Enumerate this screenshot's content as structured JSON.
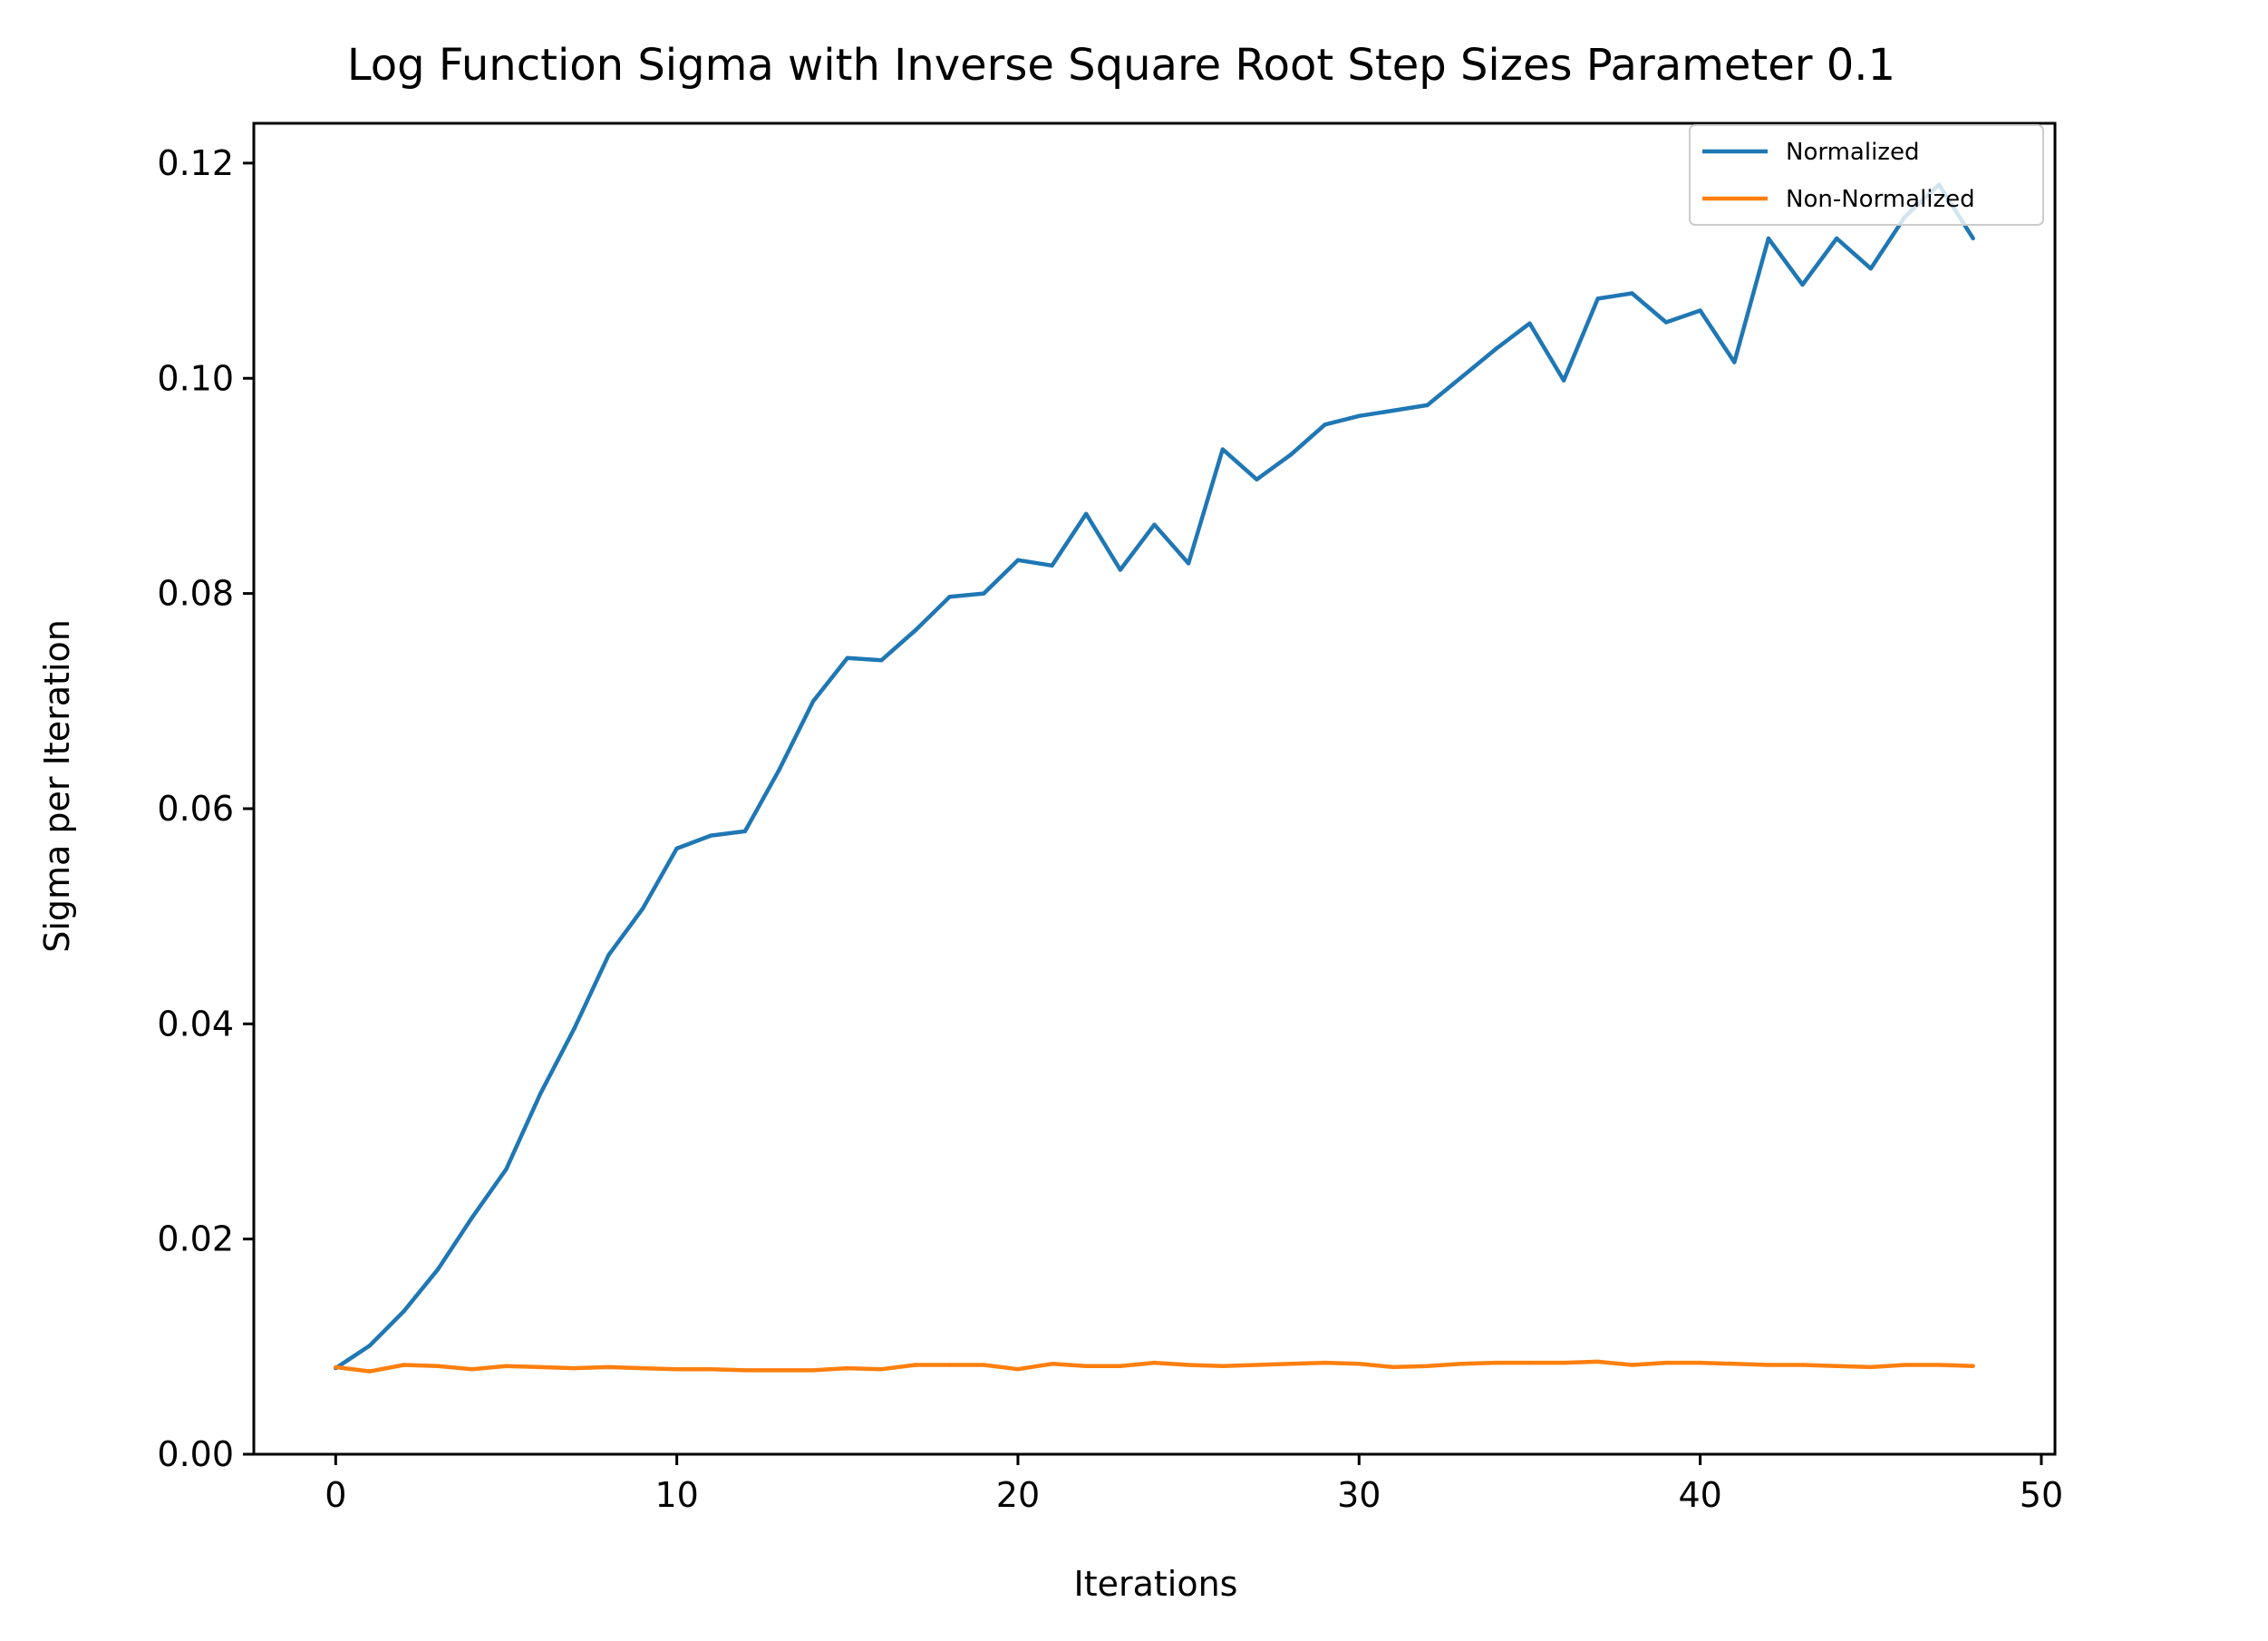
{
  "chart_data": {
    "type": "line",
    "title": "Log Function Sigma with Inverse Square Root Step Sizes Parameter 0.1",
    "xlabel": "Iterations",
    "ylabel": "Sigma per Iteration",
    "xlim": [
      -2.4,
      50.4
    ],
    "ylim": [
      0,
      0.1237
    ],
    "x_ticks": [
      0,
      10,
      20,
      30,
      40,
      50
    ],
    "x_tick_labels": [
      "0",
      "10",
      "20",
      "30",
      "40",
      "50"
    ],
    "y_ticks": [
      0,
      0.02,
      0.04,
      0.06,
      0.08,
      0.1,
      0.12
    ],
    "y_tick_labels": [
      "0.00",
      "0.02",
      "0.04",
      "0.06",
      "0.08",
      "0.10",
      "0.12"
    ],
    "grid": false,
    "legend_position": "top-right",
    "x": [
      0,
      1,
      2,
      3,
      4,
      5,
      6,
      7,
      8,
      9,
      10,
      11,
      12,
      13,
      14,
      15,
      16,
      17,
      18,
      19,
      20,
      21,
      22,
      23,
      24,
      25,
      26,
      27,
      28,
      29,
      30,
      31,
      32,
      33,
      34,
      35,
      36,
      37,
      38,
      39,
      40,
      41,
      42,
      43,
      44,
      45,
      46,
      47,
      48
    ],
    "series": [
      {
        "name": "Normalized",
        "color": "#1f77b4",
        "values": [
          0.008,
          0.0101,
          0.0133,
          0.0172,
          0.022,
          0.0265,
          0.0335,
          0.0396,
          0.0464,
          0.0507,
          0.0563,
          0.0575,
          0.0579,
          0.0636,
          0.07,
          0.074,
          0.0738,
          0.0766,
          0.0797,
          0.08,
          0.0831,
          0.0826,
          0.0874,
          0.0822,
          0.0864,
          0.0828,
          0.0934,
          0.0906,
          0.0929,
          0.0957,
          0.0965,
          0.097,
          0.0975,
          0.1001,
          0.1027,
          0.1051,
          0.0998,
          0.1074,
          0.1079,
          0.1052,
          0.1063,
          0.1015,
          0.113,
          0.1087,
          0.113,
          0.1102,
          0.115,
          0.118,
          0.113
        ]
      },
      {
        "name": "Non-Normalized",
        "color": "#ff7f0e",
        "values": [
          0.0081,
          0.0077,
          0.0083,
          0.0082,
          0.0079,
          0.0082,
          0.0081,
          0.008,
          0.0081,
          0.008,
          0.0079,
          0.0079,
          0.0078,
          0.0078,
          0.0078,
          0.008,
          0.0079,
          0.0083,
          0.0083,
          0.0083,
          0.0079,
          0.0084,
          0.0082,
          0.0082,
          0.0085,
          0.0083,
          0.0082,
          0.0083,
          0.0084,
          0.0085,
          0.0084,
          0.0081,
          0.0082,
          0.0084,
          0.0085,
          0.0085,
          0.0085,
          0.0086,
          0.0083,
          0.0085,
          0.0085,
          0.0084,
          0.0083,
          0.0083,
          0.0082,
          0.0081,
          0.0083,
          0.0083,
          0.0082
        ]
      }
    ]
  }
}
